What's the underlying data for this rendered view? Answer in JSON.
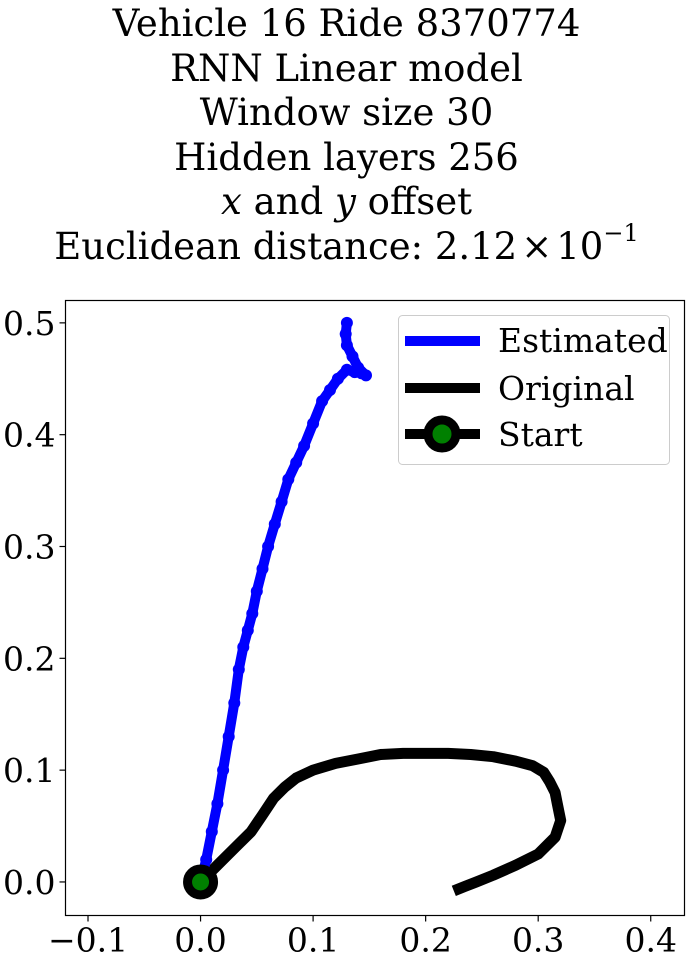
{
  "chart_data": {
    "type": "line",
    "title_lines": {
      "line1": "Vehicle 16 Ride 8370774",
      "line2": "RNN Linear model",
      "line3": "Window size 30",
      "line4": "Hidden layers 256",
      "line5": {
        "var_x": "x",
        "mid": " and ",
        "var_y": "y",
        "tail": " offset"
      },
      "line6": {
        "prefix": "Euclidean distance: ",
        "mantissa": "2.12",
        "times": "×",
        "base": "10",
        "exponent": "−1"
      }
    },
    "xlabel": "",
    "ylabel": "",
    "xlim": [
      -0.12,
      0.43
    ],
    "ylim": [
      -0.03,
      0.52
    ],
    "x_ticks": [
      -0.1,
      0.0,
      0.1,
      0.2,
      0.3,
      0.4
    ],
    "x_tick_labels": [
      "−0.1",
      "0.0",
      "0.1",
      "0.2",
      "0.3",
      "0.4"
    ],
    "y_ticks": [
      0.0,
      0.1,
      0.2,
      0.3,
      0.4,
      0.5
    ],
    "y_tick_labels": [
      "0.0",
      "0.1",
      "0.2",
      "0.3",
      "0.4",
      "0.5"
    ],
    "grid": false,
    "legend_placement": "upper-right",
    "series": [
      {
        "name": "Estimated",
        "color": "#0000ff",
        "marker": "circle",
        "x": [
          0.0,
          0.005,
          0.01,
          0.015,
          0.02,
          0.025,
          0.03,
          0.034,
          0.038,
          0.042,
          0.046,
          0.05,
          0.055,
          0.06,
          0.066,
          0.072,
          0.078,
          0.085,
          0.092,
          0.1,
          0.108,
          0.115,
          0.122,
          0.13,
          0.137,
          0.143,
          0.147,
          0.14,
          0.135,
          0.13,
          0.129,
          0.13
        ],
        "y": [
          0.0,
          0.02,
          0.045,
          0.07,
          0.1,
          0.13,
          0.16,
          0.19,
          0.21,
          0.225,
          0.24,
          0.26,
          0.28,
          0.3,
          0.32,
          0.34,
          0.36,
          0.375,
          0.39,
          0.41,
          0.43,
          0.44,
          0.45,
          0.458,
          0.456,
          0.455,
          0.453,
          0.46,
          0.47,
          0.48,
          0.49,
          0.5
        ]
      },
      {
        "name": "Original",
        "color": "#000000",
        "x": [
          0.0,
          0.015,
          0.03,
          0.045,
          0.055,
          0.065,
          0.075,
          0.085,
          0.1,
          0.12,
          0.14,
          0.16,
          0.18,
          0.2,
          0.22,
          0.24,
          0.26,
          0.28,
          0.295,
          0.305,
          0.31,
          0.315,
          0.317,
          0.32,
          0.315,
          0.3,
          0.28,
          0.26,
          0.245,
          0.235,
          0.225
        ],
        "y": [
          0.0,
          0.015,
          0.03,
          0.045,
          0.06,
          0.075,
          0.085,
          0.093,
          0.1,
          0.106,
          0.11,
          0.114,
          0.115,
          0.115,
          0.115,
          0.114,
          0.112,
          0.108,
          0.104,
          0.098,
          0.09,
          0.08,
          0.07,
          0.055,
          0.04,
          0.025,
          0.015,
          0.006,
          0.0,
          -0.004,
          -0.008
        ]
      },
      {
        "name": "Start",
        "x": [
          0.0
        ],
        "y": [
          0.0
        ],
        "marker_face_color": "#008000",
        "marker_edge_color": "#000000"
      }
    ]
  }
}
